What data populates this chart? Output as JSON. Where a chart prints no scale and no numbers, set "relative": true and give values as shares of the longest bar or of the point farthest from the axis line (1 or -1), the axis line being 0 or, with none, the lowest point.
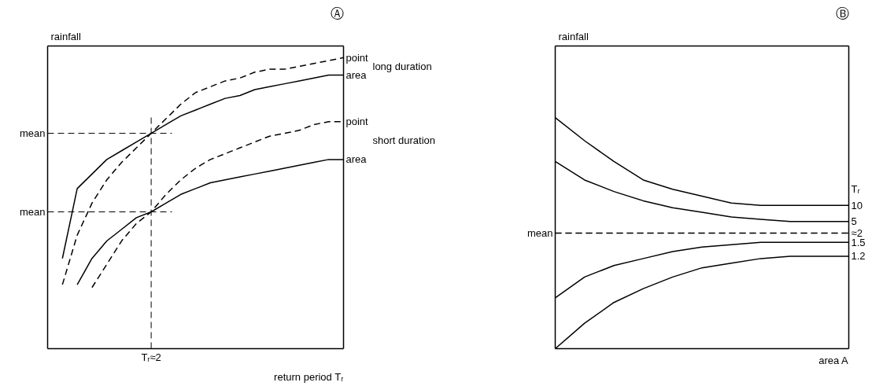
{
  "chart_data": [
    {
      "type": "line",
      "title": "Ⓐ",
      "xlabel": "return period Tᵣ",
      "ylabel": "rainfall",
      "relative": true,
      "grid": false,
      "categories": [
        null,
        null,
        null,
        null,
        null,
        null,
        null,
        null,
        null,
        null,
        null,
        null,
        null,
        null,
        null,
        null,
        null,
        null,
        null,
        null,
        null
      ],
      "series": [
        {
          "name": "point",
          "color": "#000000",
          "line_style": "dashed",
          "values": [
            null,
            0.22,
            0.39,
            0.5,
            0.58,
            0.64,
            0.69,
            0.74,
            0.79,
            0.84,
            0.88,
            0.9,
            0.92,
            0.93,
            0.95,
            0.96,
            0.96,
            0.97,
            0.98,
            0.99,
            1.0
          ]
        },
        {
          "name": "area",
          "color": "#000000",
          "line_style": "solid",
          "values": [
            null,
            0.31,
            0.55,
            0.6,
            0.65,
            0.68,
            0.71,
            0.74,
            0.77,
            0.8,
            0.82,
            0.84,
            0.86,
            0.87,
            0.89,
            0.9,
            0.91,
            0.92,
            0.93,
            0.94,
            0.94
          ]
        },
        {
          "name": "point",
          "color": "#000000",
          "line_style": "dashed",
          "values": [
            null,
            null,
            null,
            0.21,
            0.29,
            0.37,
            0.43,
            0.47,
            0.53,
            0.58,
            0.62,
            0.65,
            0.67,
            0.69,
            0.71,
            0.73,
            0.74,
            0.75,
            0.77,
            0.78,
            0.78
          ]
        },
        {
          "name": "area",
          "color": "#000000",
          "line_style": "solid",
          "values": [
            null,
            null,
            0.22,
            0.31,
            0.37,
            0.41,
            0.45,
            0.47,
            0.5,
            0.53,
            0.55,
            0.57,
            0.58,
            0.59,
            0.6,
            0.61,
            0.62,
            0.63,
            0.64,
            0.65,
            0.65
          ]
        }
      ],
      "ref_lines": [
        {
          "axis": "y",
          "value": 0.74,
          "label": "mean",
          "line_style": "dashed"
        },
        {
          "axis": "y",
          "value": 0.47,
          "label": "mean",
          "line_style": "dashed"
        }
      ],
      "annotations": [
        "long duration",
        "short duration",
        "Tᵣ≈2"
      ]
    },
    {
      "type": "line",
      "title": "Ⓑ",
      "xlabel": "area A",
      "ylabel": "rainfall",
      "relative": true,
      "grid": false,
      "legend_title": "Tᵣ",
      "categories": [
        null,
        null,
        null,
        null,
        null,
        null,
        null,
        null,
        null,
        null,
        null
      ],
      "series": [
        {
          "name": "10",
          "color": "#000000",
          "line_style": "solid",
          "values": [
            1.0,
            0.9,
            0.81,
            0.73,
            0.69,
            0.66,
            0.63,
            0.62,
            0.62,
            0.62,
            0.62
          ]
        },
        {
          "name": "5",
          "color": "#000000",
          "line_style": "solid",
          "values": [
            0.81,
            0.73,
            0.68,
            0.64,
            0.61,
            0.59,
            0.57,
            0.56,
            0.55,
            0.55,
            0.55
          ]
        },
        {
          "name": "≈2",
          "color": "#000000",
          "line_style": "dashed",
          "values": [
            0.5,
            0.5,
            0.5,
            0.5,
            0.5,
            0.5,
            0.5,
            0.5,
            0.5,
            0.5,
            0.5
          ]
        },
        {
          "name": "1.5",
          "color": "#000000",
          "line_style": "solid",
          "values": [
            0.22,
            0.31,
            0.36,
            0.39,
            0.42,
            0.44,
            0.45,
            0.46,
            0.46,
            0.46,
            0.46
          ]
        },
        {
          "name": "1.2",
          "color": "#000000",
          "line_style": "solid",
          "values": [
            0.0,
            0.11,
            0.2,
            0.26,
            0.31,
            0.35,
            0.37,
            0.39,
            0.4,
            0.4,
            0.4
          ]
        }
      ],
      "ref_lines": [
        {
          "axis": "y",
          "value": 0.5,
          "label": "mean",
          "line_style": "dashed"
        }
      ]
    }
  ]
}
